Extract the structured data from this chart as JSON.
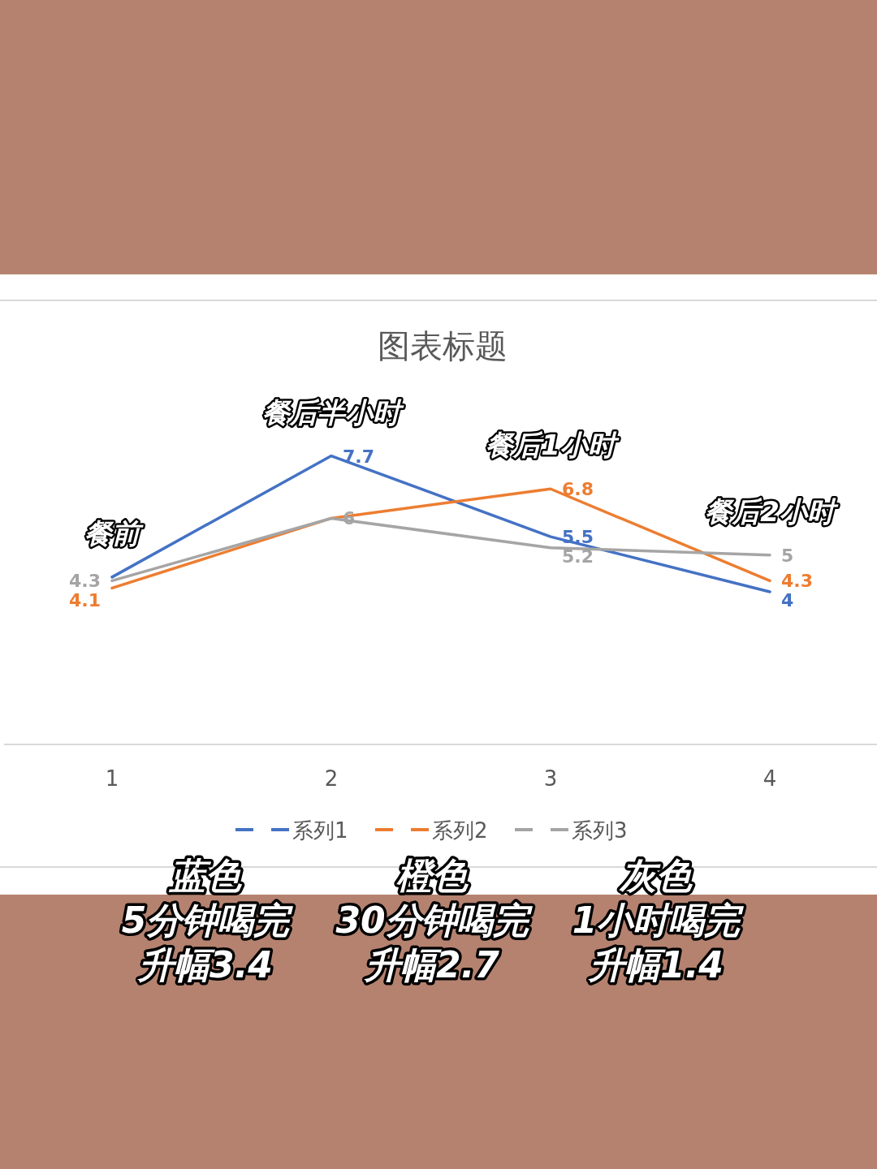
{
  "chart_data": {
    "type": "line",
    "title": "图表标题",
    "categories": [
      "1",
      "2",
      "3",
      "4"
    ],
    "series": [
      {
        "name": "系列1",
        "color": "#4472c4",
        "values": [
          4.4,
          7.7,
          5.5,
          4
        ],
        "value_labels": [
          null,
          "7.7",
          "5.5",
          "4"
        ]
      },
      {
        "name": "系列2",
        "color": "#ed7d31",
        "values": [
          4.1,
          6,
          6.8,
          4.3
        ],
        "value_labels": [
          "4.1",
          null,
          "6.8",
          "4.3"
        ]
      },
      {
        "name": "系列3",
        "color": "#a5a5a5",
        "values": [
          4.3,
          6,
          5.2,
          5
        ],
        "value_labels": [
          "4.3",
          "6",
          "5.2",
          "5"
        ]
      }
    ],
    "tick_labels": "x",
    "legend": "bottom",
    "annotations": [
      {
        "text": "餐前",
        "x": "1",
        "y": 4.4
      },
      {
        "text": "餐后半小时",
        "x": "2",
        "y": 7.7
      },
      {
        "text": "餐后1小时",
        "x": "3",
        "y": 6.8
      },
      {
        "text": "餐后2小时",
        "x": "4",
        "y": 5
      },
      "蓝色",
      "5分钟喝完",
      "升幅3.4",
      "橙色",
      "30分钟喝完",
      "升幅2.7",
      "灰色",
      "1小时喝完",
      "升幅1.4"
    ]
  }
}
